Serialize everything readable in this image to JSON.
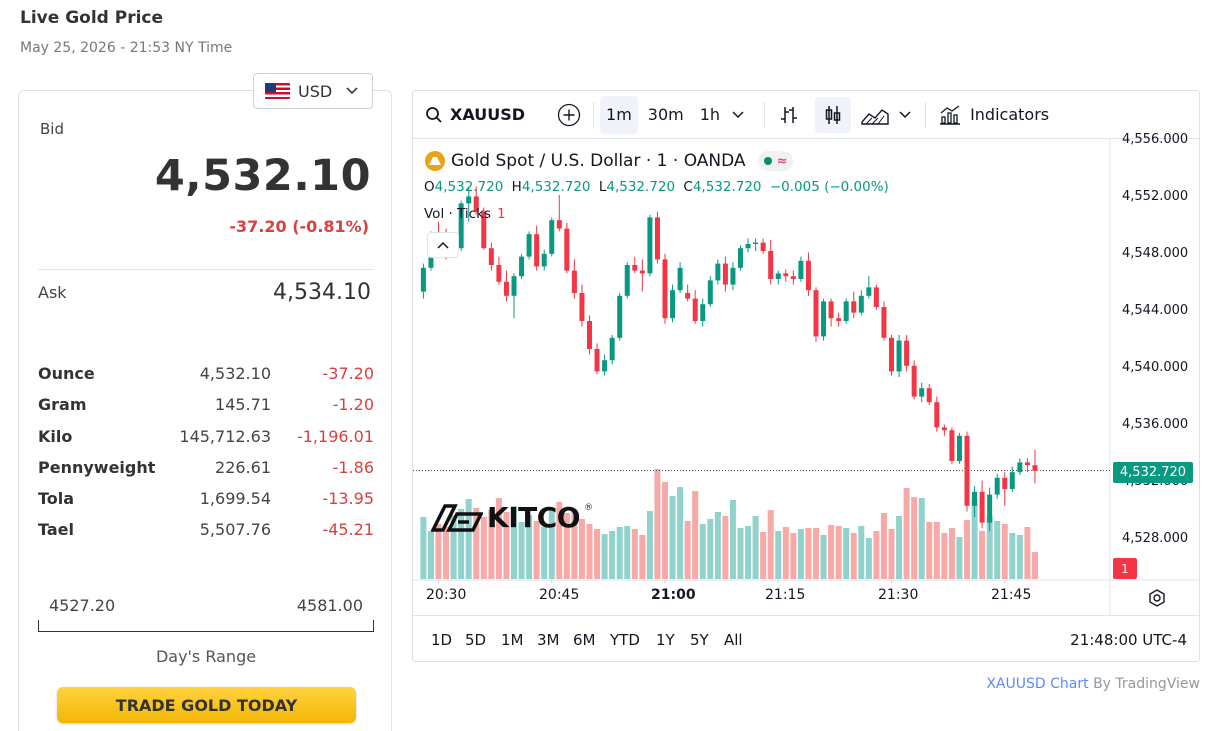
{
  "header": {
    "title": "Live Gold Price",
    "subtitle": "May 25, 2026 - 21:53 NY Time"
  },
  "currency": {
    "selected": "USD",
    "flag_icon": "us-flag-icon"
  },
  "quote": {
    "bid_label": "Bid",
    "bid_value": "4,532.10",
    "bid_change": "-37.20 (-0.81%)",
    "ask_label": "Ask",
    "ask_value": "4,534.10",
    "change_color": "#d94040"
  },
  "units": [
    {
      "name": "Ounce",
      "price": "4,532.10",
      "change": "-37.20"
    },
    {
      "name": "Gram",
      "price": "145.71",
      "change": "-1.20"
    },
    {
      "name": "Kilo",
      "price": "145,712.63",
      "change": "-1,196.01"
    },
    {
      "name": "Pennyweight",
      "price": "226.61",
      "change": "-1.86"
    },
    {
      "name": "Tola",
      "price": "1,699.54",
      "change": "-13.95"
    },
    {
      "name": "Tael",
      "price": "5,507.76",
      "change": "-45.21"
    }
  ],
  "days_range": {
    "low": "4527.20",
    "high": "4581.00",
    "label": "Day's Range"
  },
  "trade_button": "TRADE GOLD TODAY",
  "chart_toolbar": {
    "symbol": "XAUUSD",
    "intervals": [
      "1m",
      "30m",
      "1h"
    ],
    "active_interval": "1m",
    "indicators_label": "Indicators"
  },
  "chart_legend": {
    "title": "Gold Spot / U.S. Dollar · 1 · OANDA",
    "o_label": "O",
    "o_value": "4,532.720",
    "h_label": "H",
    "h_value": "4,532.720",
    "l_label": "L",
    "l_value": "4,532.720",
    "c_label": "C",
    "c_value": "4,532.720",
    "change": "−0.005 (−0.00%)",
    "volume_label": "Vol · Ticks",
    "volume_value": "1"
  },
  "watermark": {
    "text": "KITCO",
    "reg": "®"
  },
  "chart_data": {
    "type": "candlestick",
    "title": "Gold Spot / U.S. Dollar · 1 · OANDA",
    "interval": "1 minute",
    "y_ticks": [
      "4,556.000",
      "4,552.000",
      "4,548.000",
      "4,544.000",
      "4,540.000",
      "4,536.000",
      "4,532.000",
      "4,528.000"
    ],
    "y_tick_values": [
      4556,
      4552,
      4548,
      4544,
      4540,
      4536,
      4532,
      4528
    ],
    "ylim": [
      4524.9,
      4556.4
    ],
    "x_ticks": [
      "20:30",
      "20:45",
      "21:00",
      "21:15",
      "21:30",
      "21:45"
    ],
    "x_tick_minutes": [
      0,
      15,
      30,
      45,
      60,
      75
    ],
    "bold_x_tick": "21:00",
    "last_price": "4,532.720",
    "last_price_value": 4532.72,
    "last_volume": "1",
    "up_color": "#089981",
    "down_color": "#f23645",
    "volume_up_color": "#92d2cc",
    "volume_down_color": "#f7a9a7",
    "start_minute": -2,
    "candles": [
      [
        4545.5,
        4547.5,
        4545.0,
        4547.2,
        62
      ],
      [
        4547.2,
        4549.8,
        4547.0,
        4549.6,
        48
      ],
      [
        4549.5,
        4550.5,
        4548.5,
        4549.0,
        55
      ],
      [
        4549.0,
        4550.0,
        4547.8,
        4548.4,
        52
      ],
      [
        4548.4,
        4549.2,
        4548.0,
        4548.6,
        64
      ],
      [
        4548.6,
        4552.0,
        4548.4,
        4551.8,
        70
      ],
      [
        4551.8,
        4553.0,
        4550.5,
        4552.3,
        80
      ],
      [
        4552.3,
        4553.0,
        4551.0,
        4551.2,
        71
      ],
      [
        4551.2,
        4551.5,
        4548.5,
        4548.6,
        62
      ],
      [
        4548.6,
        4549.0,
        4547.0,
        4547.4,
        69
      ],
      [
        4547.4,
        4548.0,
        4546.0,
        4546.2,
        81
      ],
      [
        4546.2,
        4547.0,
        4544.8,
        4545.2,
        67
      ],
      [
        4545.2,
        4546.8,
        4543.6,
        4546.6,
        73
      ],
      [
        4546.6,
        4548.2,
        4546.4,
        4548.0,
        57
      ],
      [
        4548.0,
        4549.8,
        4547.8,
        4549.6,
        64
      ],
      [
        4549.6,
        4550.2,
        4547.0,
        4547.3,
        58
      ],
      [
        4547.3,
        4548.5,
        4547.0,
        4548.2,
        52
      ],
      [
        4548.2,
        4550.8,
        4548.0,
        4550.6,
        70
      ],
      [
        4550.6,
        4552.4,
        4549.8,
        4550.0,
        77
      ],
      [
        4550.0,
        4550.4,
        4546.8,
        4547.0,
        66
      ],
      [
        4547.0,
        4547.8,
        4545.0,
        4545.4,
        69
      ],
      [
        4545.4,
        4546.0,
        4543.0,
        4543.4,
        60
      ],
      [
        4543.4,
        4543.8,
        4541.0,
        4541.4,
        55
      ],
      [
        4541.4,
        4541.8,
        4539.6,
        4539.8,
        50
      ],
      [
        4539.8,
        4541.0,
        4539.5,
        4540.6,
        45
      ],
      [
        4540.6,
        4542.4,
        4540.3,
        4542.2,
        48
      ],
      [
        4542.2,
        4545.4,
        4542.0,
        4545.2,
        52
      ],
      [
        4545.2,
        4547.6,
        4545.0,
        4547.4,
        53
      ],
      [
        4547.4,
        4548.0,
        4546.8,
        4547.0,
        50
      ],
      [
        4547.0,
        4547.8,
        4545.5,
        4546.8,
        44
      ],
      [
        4546.8,
        4551.0,
        4546.6,
        4550.8,
        68
      ],
      [
        4550.8,
        4551.2,
        4547.5,
        4547.8,
        110
      ],
      [
        4547.8,
        4548.2,
        4543.2,
        4543.6,
        97
      ],
      [
        4543.6,
        4546.0,
        4543.3,
        4545.6,
        83
      ],
      [
        4545.6,
        4547.6,
        4545.4,
        4547.2,
        92
      ],
      [
        4545.4,
        4546.0,
        4544.8,
        4545.0,
        58
      ],
      [
        4545.0,
        4545.6,
        4543.2,
        4543.4,
        88
      ],
      [
        4543.4,
        4545.0,
        4543.0,
        4544.6,
        55
      ],
      [
        4544.6,
        4546.6,
        4544.4,
        4546.3,
        60
      ],
      [
        4546.3,
        4547.8,
        4546.0,
        4547.5,
        67
      ],
      [
        4547.5,
        4548.0,
        4545.5,
        4546.0,
        63
      ],
      [
        4546.0,
        4547.6,
        4545.6,
        4547.2,
        79
      ],
      [
        4547.2,
        4548.8,
        4547.0,
        4548.6,
        51
      ],
      [
        4548.6,
        4549.3,
        4548.3,
        4548.9,
        53
      ],
      [
        4548.9,
        4549.3,
        4548.4,
        4549.0,
        63
      ],
      [
        4549.0,
        4549.3,
        4548.2,
        4548.4,
        47
      ],
      [
        4548.4,
        4549.2,
        4546.0,
        4546.4,
        69
      ],
      [
        4546.4,
        4547.0,
        4546.0,
        4546.8,
        48
      ],
      [
        4546.8,
        4547.1,
        4546.2,
        4546.6,
        52
      ],
      [
        4546.6,
        4547.0,
        4546.0,
        4546.4,
        46
      ],
      [
        4546.4,
        4548.0,
        4546.2,
        4547.7,
        50
      ],
      [
        4547.7,
        4548.3,
        4545.2,
        4545.6,
        51
      ],
      [
        4545.6,
        4545.8,
        4541.9,
        4542.3,
        51
      ],
      [
        4542.3,
        4545.0,
        4542.0,
        4544.8,
        44
      ],
      [
        4544.8,
        4545.0,
        4543.0,
        4543.6,
        54
      ],
      [
        4543.6,
        4544.0,
        4543.0,
        4543.4,
        53
      ],
      [
        4543.4,
        4545.0,
        4543.2,
        4544.8,
        51
      ],
      [
        4544.8,
        4545.5,
        4543.6,
        4544.0,
        46
      ],
      [
        4544.0,
        4545.6,
        4543.8,
        4545.2,
        53
      ],
      [
        4545.2,
        4546.6,
        4545.0,
        4545.8,
        41
      ],
      [
        4545.8,
        4546.0,
        4544.2,
        4544.4,
        48
      ],
      [
        4544.4,
        4544.8,
        4542.0,
        4542.2,
        66
      ],
      [
        4542.2,
        4542.4,
        4539.5,
        4539.8,
        50
      ],
      [
        4539.8,
        4542.4,
        4539.4,
        4542.0,
        63
      ],
      [
        4542.0,
        4542.4,
        4539.8,
        4540.2,
        91
      ],
      [
        4540.2,
        4540.6,
        4537.8,
        4538.0,
        82
      ],
      [
        4538.0,
        4539.0,
        4537.6,
        4538.6,
        81
      ],
      [
        4538.6,
        4538.9,
        4537.4,
        4537.6,
        57
      ],
      [
        4537.6,
        4538.0,
        4535.5,
        4535.8,
        57
      ],
      [
        4535.8,
        4536.0,
        4535.2,
        4535.6,
        46
      ],
      [
        4535.6,
        4535.8,
        4533.2,
        4533.4,
        51
      ],
      [
        4533.4,
        4535.4,
        4533.2,
        4535.2,
        42
      ],
      [
        4535.2,
        4535.5,
        4529.8,
        4530.2,
        59
      ],
      [
        4530.2,
        4531.6,
        4529.4,
        4531.2,
        82
      ],
      [
        4531.2,
        4532.0,
        4528.6,
        4529.0,
        48
      ],
      [
        4529.0,
        4531.5,
        4528.4,
        4531.0,
        63
      ],
      [
        4531.0,
        4532.5,
        4530.7,
        4532.2,
        58
      ],
      [
        4532.2,
        4532.6,
        4530.2,
        4531.4,
        55
      ],
      [
        4531.4,
        4533.0,
        4531.2,
        4532.6,
        46
      ],
      [
        4532.6,
        4533.6,
        4532.4,
        4533.3,
        44
      ],
      [
        4533.3,
        4533.6,
        4532.6,
        4533.1,
        52
      ],
      [
        4533.1,
        4534.2,
        4531.8,
        4532.7,
        27
      ]
    ]
  },
  "price_axis_visible": [
    "4,556.000",
    "4,552.000",
    "4,548.000",
    "4,544.000",
    "4,540.000",
    "4,536.000",
    "4,532.000",
    "4,528.000"
  ],
  "time_axis": [
    "20:30",
    "20:45",
    "21:00",
    "21:15",
    "21:30",
    "21:45"
  ],
  "range_buttons": [
    "1D",
    "5D",
    "1M",
    "3M",
    "6M",
    "YTD",
    "1Y",
    "5Y",
    "All"
  ],
  "clock": "21:48:00 UTC-4",
  "attribution": {
    "link": "XAUUSD Chart",
    "by": "By TradingView"
  }
}
